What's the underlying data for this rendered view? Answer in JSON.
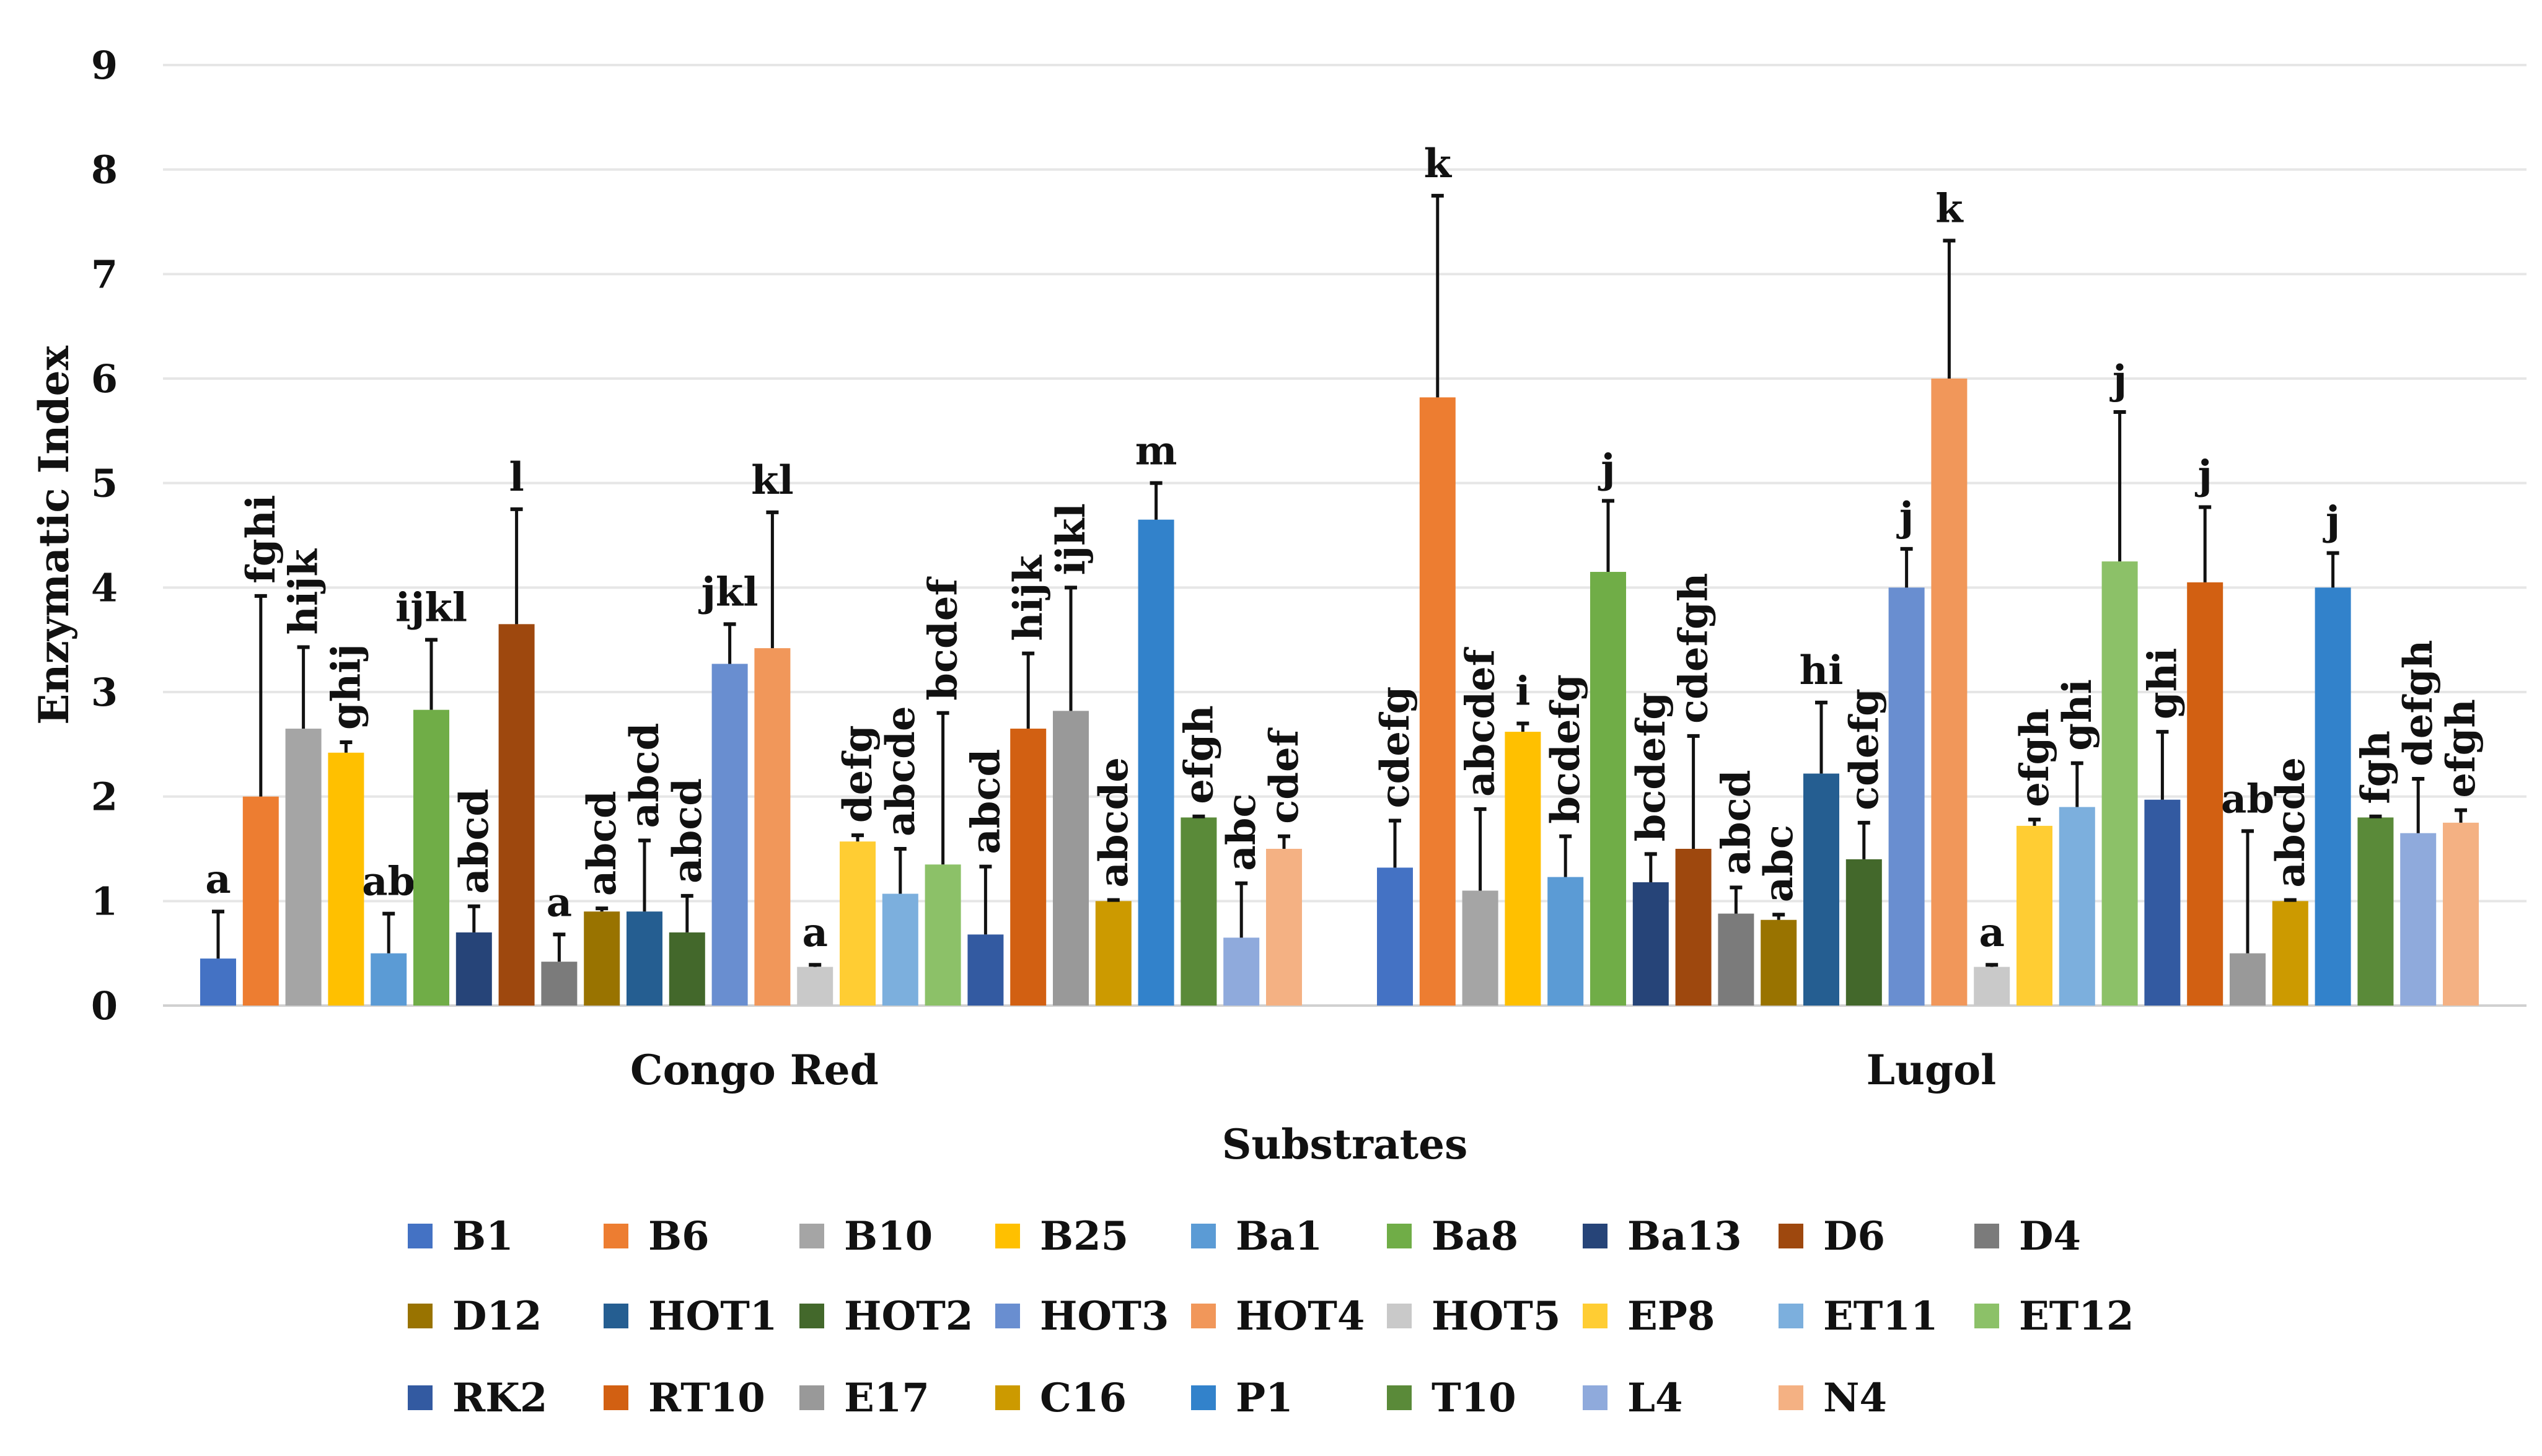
{
  "chart_data": {
    "type": "bar",
    "title": "",
    "xlabel": "Substrates",
    "ylabel": "Enzymatic Index",
    "ylim": [
      0,
      9
    ],
    "yticks": [
      0,
      1,
      2,
      3,
      4,
      5,
      6,
      7,
      8,
      9
    ],
    "grid": true,
    "legend_position": "bottom",
    "categories": [
      "Congo Red",
      "Lugol"
    ],
    "series": [
      {
        "name": "B1",
        "color": "#4472c4",
        "values": [
          0.45,
          1.32
        ],
        "err_top": [
          0.9,
          1.77
        ],
        "letters": [
          "a",
          "cdefg"
        ]
      },
      {
        "name": "B6",
        "color": "#ed7d31",
        "values": [
          2.0,
          5.82
        ],
        "err_top": [
          3.92,
          7.75
        ],
        "letters": [
          "fghi",
          "k"
        ]
      },
      {
        "name": "B10",
        "color": "#a5a5a5",
        "values": [
          2.65,
          1.1
        ],
        "err_top": [
          3.43,
          1.88
        ],
        "letters": [
          "hijk",
          "abcdef"
        ]
      },
      {
        "name": "B25",
        "color": "#ffc000",
        "values": [
          2.42,
          2.62
        ],
        "err_top": [
          2.52,
          2.7
        ],
        "letters": [
          "ghij",
          "i"
        ]
      },
      {
        "name": "Ba1",
        "color": "#5b9bd5",
        "values": [
          0.5,
          1.23
        ],
        "err_top": [
          0.88,
          1.62
        ],
        "letters": [
          "ab",
          "bcdefg"
        ]
      },
      {
        "name": "Ba8",
        "color": "#70ad47",
        "values": [
          2.83,
          4.15
        ],
        "err_top": [
          3.5,
          4.83
        ],
        "letters": [
          "ijkl",
          "j"
        ]
      },
      {
        "name": "Ba13",
        "color": "#264478",
        "values": [
          0.7,
          1.18
        ],
        "err_top": [
          0.95,
          1.45
        ],
        "letters": [
          "abcd",
          "bcdefg"
        ]
      },
      {
        "name": "D6",
        "color": "#9e480e",
        "values": [
          3.65,
          1.5
        ],
        "err_top": [
          4.75,
          2.58
        ],
        "letters": [
          "l",
          "cdefgh"
        ]
      },
      {
        "name": "D4",
        "color": "#7b7b7b",
        "values": [
          0.42,
          0.88
        ],
        "err_top": [
          0.68,
          1.13
        ],
        "letters": [
          "a",
          "abcd"
        ]
      },
      {
        "name": "D12",
        "color": "#997300",
        "values": [
          0.9,
          0.82
        ],
        "err_top": [
          0.93,
          0.87
        ],
        "letters": [
          "abcd",
          "abc"
        ]
      },
      {
        "name": "HOT1",
        "color": "#255e91",
        "values": [
          0.9,
          2.22
        ],
        "err_top": [
          1.58,
          2.9
        ],
        "letters": [
          "abcd",
          "hi"
        ]
      },
      {
        "name": "HOT2",
        "color": "#43682b",
        "values": [
          0.7,
          1.4
        ],
        "err_top": [
          1.05,
          1.75
        ],
        "letters": [
          "abcd",
          "cdefg"
        ]
      },
      {
        "name": "HOT3",
        "color": "#698ed0",
        "values": [
          3.27,
          4.0
        ],
        "err_top": [
          3.65,
          4.37
        ],
        "letters": [
          "jkl",
          "j"
        ]
      },
      {
        "name": "HOT4",
        "color": "#f1975a",
        "values": [
          3.42,
          6.0
        ],
        "err_top": [
          4.72,
          7.32
        ],
        "letters": [
          "kl",
          "k"
        ]
      },
      {
        "name": "HOT5",
        "color": "#c9c9c9",
        "values": [
          0.37,
          0.37
        ],
        "err_top": [
          0.39,
          0.39
        ],
        "letters": [
          "a",
          "a"
        ]
      },
      {
        "name": "EP8",
        "color": "#ffcd33",
        "values": [
          1.57,
          1.72
        ],
        "err_top": [
          1.63,
          1.78
        ],
        "letters": [
          "defg",
          "efgh"
        ]
      },
      {
        "name": "ET11",
        "color": "#7cafdd",
        "values": [
          1.07,
          1.9
        ],
        "err_top": [
          1.5,
          2.32
        ],
        "letters": [
          "abcde",
          "ghi"
        ]
      },
      {
        "name": "ET12",
        "color": "#8cc168",
        "values": [
          1.35,
          4.25
        ],
        "err_top": [
          2.8,
          5.68
        ],
        "letters": [
          "bcdef",
          "j"
        ]
      },
      {
        "name": "RK2",
        "color": "#335aa1",
        "values": [
          0.68,
          1.97
        ],
        "err_top": [
          1.33,
          2.62
        ],
        "letters": [
          "abcd",
          "ghi"
        ]
      },
      {
        "name": "RT10",
        "color": "#d26012",
        "values": [
          2.65,
          4.05
        ],
        "err_top": [
          3.37,
          4.77
        ],
        "letters": [
          "hijk",
          "j"
        ]
      },
      {
        "name": "E17",
        "color": "#999999",
        "values": [
          2.82,
          0.5
        ],
        "err_top": [
          4.0,
          1.67
        ],
        "letters": [
          "ijkl",
          "ab"
        ]
      },
      {
        "name": "C16",
        "color": "#cc9a00",
        "values": [
          1.0,
          1.0
        ],
        "err_top": [
          1.01,
          1.01
        ],
        "letters": [
          "abcde",
          "abcde"
        ]
      },
      {
        "name": "P1",
        "color": "#3282cb",
        "values": [
          4.65,
          4.0
        ],
        "err_top": [
          5.0,
          4.33
        ],
        "letters": [
          "m",
          "j"
        ]
      },
      {
        "name": "T10",
        "color": "#5a8a39",
        "values": [
          1.8,
          1.8
        ],
        "err_top": [
          1.81,
          1.81
        ],
        "letters": [
          "efgh",
          "fgh"
        ]
      },
      {
        "name": "L4",
        "color": "#8faadc",
        "values": [
          0.65,
          1.65
        ],
        "err_top": [
          1.17,
          2.17
        ],
        "letters": [
          "abc",
          "defgh"
        ]
      },
      {
        "name": "N4",
        "color": "#f4b183",
        "values": [
          1.5,
          1.75
        ],
        "err_top": [
          1.62,
          1.87
        ],
        "letters": [
          "cdef",
          "efgh"
        ]
      }
    ]
  }
}
